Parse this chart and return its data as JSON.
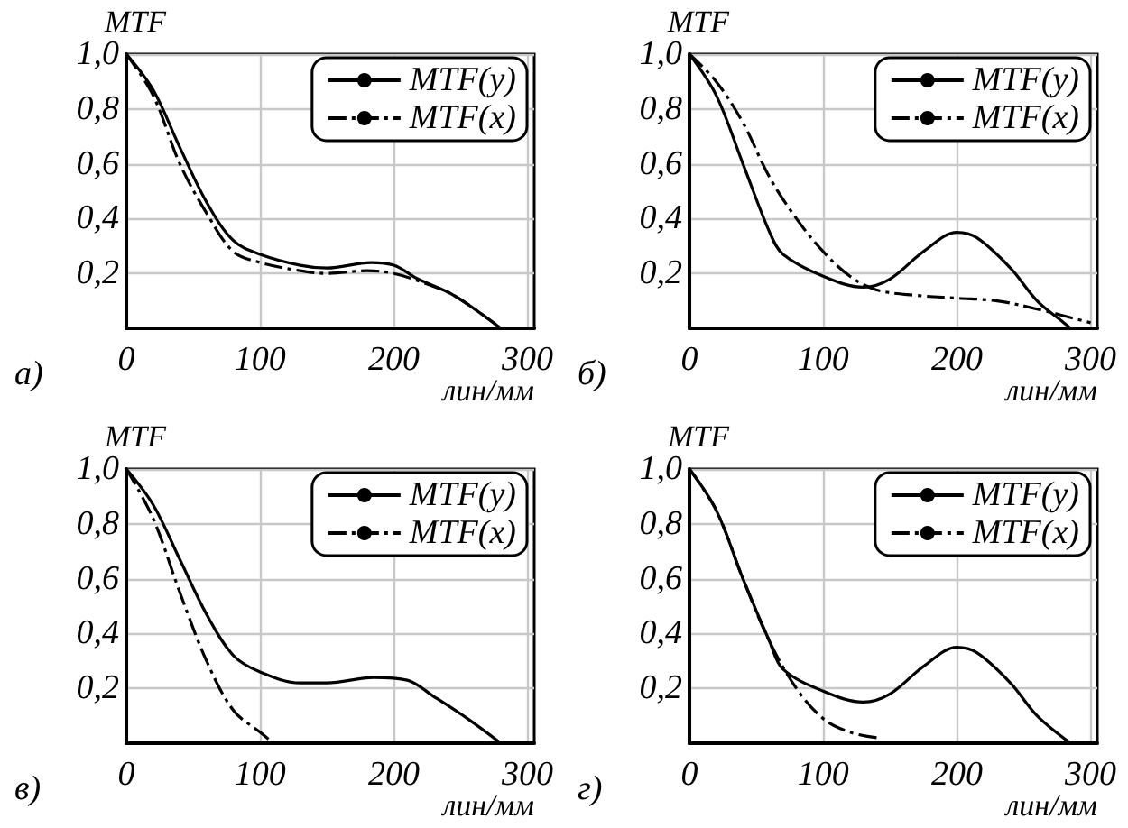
{
  "chart_data": [
    {
      "type": "line",
      "ylabel": "MTF",
      "xlabel": "лин/мм",
      "annotations": [
        "а)"
      ],
      "xlim": [
        0,
        305
      ],
      "ylim": [
        0,
        1.0
      ],
      "xticks": [
        0,
        100,
        200,
        300
      ],
      "yticks": [
        {
          "value": 0.2,
          "label": "0,2"
        },
        {
          "value": 0.4,
          "label": "0,4"
        },
        {
          "value": 0.6,
          "label": "0,6"
        },
        {
          "value": 0.8,
          "label": "0,8"
        },
        {
          "value": 1.0,
          "label": "1,0"
        }
      ],
      "grid": true,
      "legend": "top right",
      "series": [
        {
          "name": "MTF(y)",
          "color": "#000000",
          "line_style": "solid",
          "x": [
            0,
            20,
            40,
            60,
            80,
            100,
            130,
            150,
            183,
            200,
            218,
            245,
            280
          ],
          "values": [
            1.0,
            0.87,
            0.66,
            0.46,
            0.32,
            0.27,
            0.23,
            0.22,
            0.24,
            0.23,
            0.18,
            0.12,
            0
          ]
        },
        {
          "name": "MTF(x)",
          "color": "#000000",
          "line_style": "dashdot",
          "x": [
            0,
            20,
            40,
            60,
            80,
            100,
            130,
            150,
            180,
            200,
            220,
            245,
            280
          ],
          "values": [
            1.0,
            0.85,
            0.6,
            0.42,
            0.28,
            0.24,
            0.21,
            0.2,
            0.21,
            0.2,
            0.17,
            0.12,
            0
          ]
        }
      ]
    },
    {
      "type": "line",
      "ylabel": "MTF",
      "xlabel": "лин/мм",
      "annotations": [
        "б)"
      ],
      "xlim": [
        0,
        305
      ],
      "ylim": [
        0,
        1.0
      ],
      "xticks": [
        0,
        100,
        200,
        300
      ],
      "yticks": [
        {
          "value": 0.2,
          "label": "0,2"
        },
        {
          "value": 0.4,
          "label": "0,4"
        },
        {
          "value": 0.6,
          "label": "0,6"
        },
        {
          "value": 0.8,
          "label": "0,8"
        },
        {
          "value": 1.0,
          "label": "1,0"
        }
      ],
      "grid": true,
      "legend": "top right",
      "series": [
        {
          "name": "MTF(y)",
          "color": "#000000",
          "line_style": "solid",
          "x": [
            0,
            20,
            40,
            60,
            70,
            100,
            130,
            150,
            175,
            200,
            215,
            240,
            260,
            280,
            285
          ],
          "values": [
            1.0,
            0.85,
            0.6,
            0.35,
            0.27,
            0.19,
            0.15,
            0.18,
            0.28,
            0.35,
            0.33,
            0.22,
            0.1,
            0.02,
            0
          ]
        },
        {
          "name": "MTF(x)",
          "color": "#000000",
          "line_style": "dashdot",
          "x": [
            0,
            20,
            40,
            60,
            80,
            100,
            120,
            140,
            170,
            200,
            230,
            260,
            300
          ],
          "values": [
            1.0,
            0.9,
            0.75,
            0.55,
            0.4,
            0.28,
            0.19,
            0.14,
            0.12,
            0.11,
            0.1,
            0.07,
            0.02
          ]
        }
      ]
    },
    {
      "type": "line",
      "ylabel": "MTF",
      "xlabel": "лин/мм",
      "annotations": [
        "в)"
      ],
      "xlim": [
        0,
        305
      ],
      "ylim": [
        0,
        1.0
      ],
      "xticks": [
        0,
        100,
        200,
        300
      ],
      "yticks": [
        {
          "value": 0.2,
          "label": "0,2"
        },
        {
          "value": 0.4,
          "label": "0,4"
        },
        {
          "value": 0.6,
          "label": "0,6"
        },
        {
          "value": 0.8,
          "label": "0,8"
        },
        {
          "value": 1.0,
          "label": "1,0"
        }
      ],
      "grid": true,
      "legend": "top right",
      "series": [
        {
          "name": "MTF(y)",
          "color": "#000000",
          "line_style": "solid",
          "x": [
            0,
            20,
            40,
            60,
            80,
            100,
            130,
            150,
            185,
            210,
            230,
            255,
            280
          ],
          "values": [
            1.0,
            0.87,
            0.67,
            0.47,
            0.32,
            0.26,
            0.22,
            0.22,
            0.24,
            0.23,
            0.17,
            0.09,
            0
          ]
        },
        {
          "name": "MTF(x)",
          "color": "#000000",
          "line_style": "dashdot",
          "x": [
            0,
            20,
            40,
            60,
            80,
            100,
            110
          ],
          "values": [
            1.0,
            0.82,
            0.55,
            0.3,
            0.12,
            0.04,
            0
          ]
        }
      ]
    },
    {
      "type": "line",
      "ylabel": "MTF",
      "xlabel": "лин/мм",
      "annotations": [
        "г)"
      ],
      "xlim": [
        0,
        305
      ],
      "ylim": [
        0,
        1.0
      ],
      "xticks": [
        0,
        100,
        200,
        300
      ],
      "yticks": [
        {
          "value": 0.2,
          "label": "0,2"
        },
        {
          "value": 0.4,
          "label": "0,4"
        },
        {
          "value": 0.6,
          "label": "0,6"
        },
        {
          "value": 0.8,
          "label": "0,8"
        },
        {
          "value": 1.0,
          "label": "1,0"
        }
      ],
      "grid": true,
      "legend": "top right",
      "series": [
        {
          "name": "MTF(y)",
          "color": "#000000",
          "line_style": "solid",
          "x": [
            0,
            20,
            40,
            60,
            70,
            100,
            130,
            150,
            175,
            200,
            215,
            240,
            260,
            285
          ],
          "values": [
            1.0,
            0.85,
            0.6,
            0.37,
            0.27,
            0.19,
            0.15,
            0.18,
            0.28,
            0.35,
            0.33,
            0.22,
            0.1,
            0
          ]
        },
        {
          "name": "MTF(x)",
          "color": "#000000",
          "line_style": "dashdot",
          "x": [
            0,
            20,
            40,
            60,
            80,
            100,
            120,
            140
          ],
          "values": [
            1.0,
            0.85,
            0.6,
            0.37,
            0.2,
            0.09,
            0.04,
            0.02
          ]
        }
      ]
    }
  ]
}
